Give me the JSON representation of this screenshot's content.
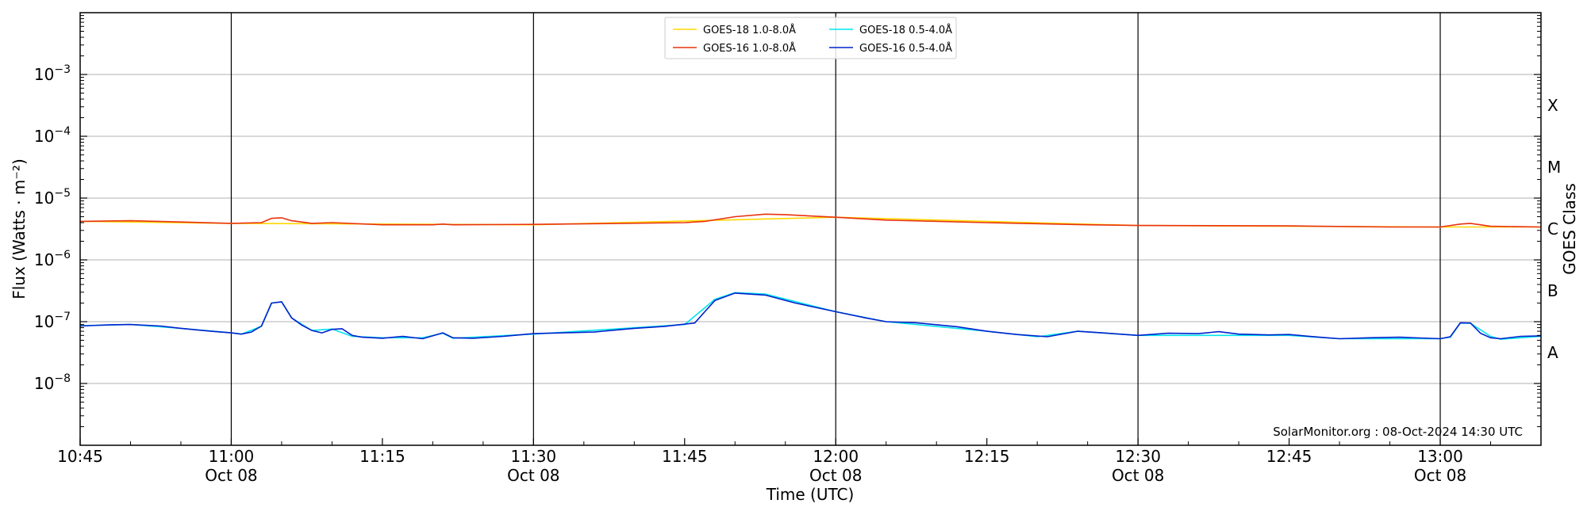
{
  "chart_data": {
    "type": "line",
    "xlabel": "Time (UTC)",
    "ylabel": "Flux (Watts · m⁻²)",
    "ylabel_right": "GOES Class",
    "y_scale": "log",
    "ylim": [
      1e-09,
      0.01
    ],
    "xlim": [
      "10:45",
      "13:10"
    ],
    "grid": "horizontal at decades; vertical lines every 30 min",
    "legend_position": "top-center",
    "credit": "SolarMonitor.org : 08-Oct-2024 14:30 UTC",
    "x_ticks": [
      {
        "time": "10:45",
        "line1": "10:45",
        "line2": ""
      },
      {
        "time": "11:00",
        "line1": "11:00",
        "line2": "Oct 08"
      },
      {
        "time": "11:15",
        "line1": "11:15",
        "line2": ""
      },
      {
        "time": "11:30",
        "line1": "11:30",
        "line2": "Oct 08"
      },
      {
        "time": "11:45",
        "line1": "11:45",
        "line2": ""
      },
      {
        "time": "12:00",
        "line1": "12:00",
        "line2": "Oct 08"
      },
      {
        "time": "12:15",
        "line1": "12:15",
        "line2": ""
      },
      {
        "time": "12:30",
        "line1": "12:30",
        "line2": "Oct 08"
      },
      {
        "time": "12:45",
        "line1": "12:45",
        "line2": ""
      },
      {
        "time": "13:00",
        "line1": "13:00",
        "line2": "Oct 08"
      }
    ],
    "y_ticks": [
      {
        "value": 1e-08,
        "exp": "−8"
      },
      {
        "value": 1e-07,
        "exp": "−7"
      },
      {
        "value": 1e-06,
        "exp": "−6"
      },
      {
        "value": 1e-05,
        "exp": "−5"
      },
      {
        "value": 0.0001,
        "exp": "−4"
      },
      {
        "value": 0.001,
        "exp": "−3"
      }
    ],
    "goes_classes": [
      {
        "label": "A",
        "value": 3.16e-08
      },
      {
        "label": "B",
        "value": 3.16e-07
      },
      {
        "label": "C",
        "value": 3.16e-06
      },
      {
        "label": "M",
        "value": 3.16e-05
      },
      {
        "label": "X",
        "value": 0.000316
      }
    ],
    "series": [
      {
        "name": "GOES-18 1.0-8.0Å",
        "color": "#ffd700",
        "points": [
          [
            "10:45",
            4.2e-06
          ],
          [
            "11:00",
            3.9e-06
          ],
          [
            "11:30",
            3.7e-06
          ],
          [
            "12:00",
            4.9e-06
          ],
          [
            "12:30",
            3.6e-06
          ],
          [
            "13:00",
            3.4e-06
          ],
          [
            "13:10",
            3.4e-06
          ]
        ]
      },
      {
        "name": "GOES-16 1.0-8.0Å",
        "color": "#e8330f",
        "points": [
          [
            "10:45",
            4.2e-06
          ],
          [
            "10:50",
            4.3e-06
          ],
          [
            "10:55",
            4.1e-06
          ],
          [
            "11:00",
            3.9e-06
          ],
          [
            "11:03",
            4e-06
          ],
          [
            "11:04",
            4.7e-06
          ],
          [
            "11:05",
            4.8e-06
          ],
          [
            "11:06",
            4.3e-06
          ],
          [
            "11:08",
            3.9e-06
          ],
          [
            "11:10",
            4e-06
          ],
          [
            "11:15",
            3.7e-06
          ],
          [
            "11:20",
            3.7e-06
          ],
          [
            "11:21",
            3.8e-06
          ],
          [
            "11:22",
            3.7e-06
          ],
          [
            "11:30",
            3.75e-06
          ],
          [
            "11:45",
            4e-06
          ],
          [
            "11:47",
            4.2e-06
          ],
          [
            "11:50",
            5e-06
          ],
          [
            "11:53",
            5.5e-06
          ],
          [
            "11:55",
            5.4e-06
          ],
          [
            "12:00",
            4.9e-06
          ],
          [
            "12:05",
            4.4e-06
          ],
          [
            "12:15",
            4e-06
          ],
          [
            "12:25",
            3.7e-06
          ],
          [
            "12:30",
            3.6e-06
          ],
          [
            "12:45",
            3.55e-06
          ],
          [
            "12:55",
            3.4e-06
          ],
          [
            "13:00",
            3.4e-06
          ],
          [
            "13:02",
            3.8e-06
          ],
          [
            "13:03",
            3.9e-06
          ],
          [
            "13:05",
            3.5e-06
          ],
          [
            "13:10",
            3.4e-06
          ]
        ]
      },
      {
        "name": "GOES-18 0.5-4.0Å",
        "color": "#00e5ee",
        "points": [
          [
            "10:45",
            8.6e-08
          ],
          [
            "10:50",
            9e-08
          ],
          [
            "10:55",
            7.8e-08
          ],
          [
            "11:00",
            6.6e-08
          ],
          [
            "11:01",
            6.3e-08
          ],
          [
            "11:03",
            8.4e-08
          ],
          [
            "11:04",
            2e-07
          ],
          [
            "11:05",
            2.1e-07
          ],
          [
            "11:06",
            1.15e-07
          ],
          [
            "11:08",
            7.2e-08
          ],
          [
            "11:10",
            7.6e-08
          ],
          [
            "11:12",
            5.8e-08
          ],
          [
            "11:15",
            5.5e-08
          ],
          [
            "11:19",
            5.5e-08
          ],
          [
            "11:21",
            6.5e-08
          ],
          [
            "11:22",
            5.4e-08
          ],
          [
            "11:30",
            6.3e-08
          ],
          [
            "11:45",
            9e-08
          ],
          [
            "11:48",
            2.3e-07
          ],
          [
            "11:50",
            2.95e-07
          ],
          [
            "11:53",
            2.8e-07
          ],
          [
            "12:00",
            1.45e-07
          ],
          [
            "12:05",
            1e-07
          ],
          [
            "12:15",
            7e-08
          ],
          [
            "12:20",
            5.7e-08
          ],
          [
            "12:24",
            7e-08
          ],
          [
            "12:30",
            6e-08
          ],
          [
            "12:45",
            6e-08
          ],
          [
            "12:50",
            5.3e-08
          ],
          [
            "13:00",
            5.3e-08
          ],
          [
            "13:01",
            5.6e-08
          ],
          [
            "13:02",
            9.5e-08
          ],
          [
            "13:03",
            9.4e-08
          ],
          [
            "13:05",
            5.8e-08
          ],
          [
            "13:06",
            5.2e-08
          ],
          [
            "13:10",
            5.8e-08
          ]
        ]
      },
      {
        "name": "GOES-16 0.5-4.0Å",
        "color": "#0022cc",
        "points": [
          [
            "10:45",
            8.5e-08
          ],
          [
            "10:48",
            8.9e-08
          ],
          [
            "10:50",
            9e-08
          ],
          [
            "10:53",
            8.5e-08
          ],
          [
            "10:55",
            7.8e-08
          ],
          [
            "10:58",
            7e-08
          ],
          [
            "11:00",
            6.6e-08
          ],
          [
            "11:01",
            6.3e-08
          ],
          [
            "11:02",
            6.8e-08
          ],
          [
            "11:03",
            8.5e-08
          ],
          [
            "11:04",
            2e-07
          ],
          [
            "11:05",
            2.1e-07
          ],
          [
            "11:06",
            1.15e-07
          ],
          [
            "11:07",
            8.8e-08
          ],
          [
            "11:08",
            7.2e-08
          ],
          [
            "11:09",
            6.6e-08
          ],
          [
            "11:10",
            7.5e-08
          ],
          [
            "11:11",
            7.7e-08
          ],
          [
            "11:12",
            6e-08
          ],
          [
            "11:13",
            5.6e-08
          ],
          [
            "11:15",
            5.4e-08
          ],
          [
            "11:17",
            5.8e-08
          ],
          [
            "11:19",
            5.3e-08
          ],
          [
            "11:21",
            6.6e-08
          ],
          [
            "11:22",
            5.5e-08
          ],
          [
            "11:24",
            5.4e-08
          ],
          [
            "11:27",
            5.8e-08
          ],
          [
            "11:30",
            6.4e-08
          ],
          [
            "11:33",
            6.6e-08
          ],
          [
            "11:36",
            6.8e-08
          ],
          [
            "11:40",
            7.8e-08
          ],
          [
            "11:43",
            8.4e-08
          ],
          [
            "11:46",
            9.5e-08
          ],
          [
            "11:48",
            2.2e-07
          ],
          [
            "11:50",
            2.9e-07
          ],
          [
            "11:53",
            2.7e-07
          ],
          [
            "11:56",
            2e-07
          ],
          [
            "12:00",
            1.45e-07
          ],
          [
            "12:03",
            1.15e-07
          ],
          [
            "12:05",
            1e-07
          ],
          [
            "12:08",
            9.6e-08
          ],
          [
            "12:12",
            8.3e-08
          ],
          [
            "12:15",
            7e-08
          ],
          [
            "12:18",
            6.2e-08
          ],
          [
            "12:21",
            5.7e-08
          ],
          [
            "12:24",
            7e-08
          ],
          [
            "12:27",
            6.5e-08
          ],
          [
            "12:30",
            6e-08
          ],
          [
            "12:33",
            6.5e-08
          ],
          [
            "12:36",
            6.4e-08
          ],
          [
            "12:38",
            6.9e-08
          ],
          [
            "12:40",
            6.3e-08
          ],
          [
            "12:43",
            6.1e-08
          ],
          [
            "12:45",
            6.2e-08
          ],
          [
            "12:48",
            5.6e-08
          ],
          [
            "12:50",
            5.3e-08
          ],
          [
            "12:53",
            5.5e-08
          ],
          [
            "12:56",
            5.6e-08
          ],
          [
            "13:00",
            5.3e-08
          ],
          [
            "13:01",
            5.7e-08
          ],
          [
            "13:02",
            9.6e-08
          ],
          [
            "13:03",
            9.5e-08
          ],
          [
            "13:04",
            6.5e-08
          ],
          [
            "13:05",
            5.5e-08
          ],
          [
            "13:06",
            5.3e-08
          ],
          [
            "13:08",
            5.8e-08
          ],
          [
            "13:10",
            5.9e-08
          ]
        ]
      }
    ]
  }
}
